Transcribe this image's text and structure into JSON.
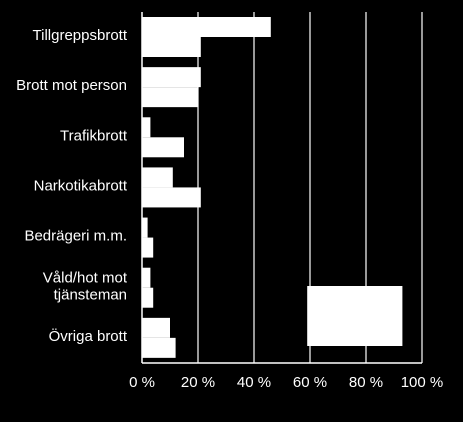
{
  "chart_data": {
    "type": "bar",
    "orientation": "horizontal",
    "categories": [
      [
        "Tillgreppsbrott"
      ],
      [
        "Brott mot person"
      ],
      [
        "Trafikbrott"
      ],
      [
        "Narkotikabrott"
      ],
      [
        "Bedrägeri m.m."
      ],
      [
        "Våld/hot mot",
        "tjänsteman"
      ],
      [
        "Övriga brott"
      ]
    ],
    "series": [
      {
        "values": [
          46,
          21,
          3,
          11,
          2,
          3,
          10
        ]
      },
      {
        "values": [
          21,
          20,
          15,
          21,
          4,
          4,
          12
        ]
      }
    ],
    "xlim": [
      0,
      100
    ],
    "xticks": [
      0,
      20,
      40,
      60,
      80,
      100
    ],
    "xtick_labels": [
      "0 %",
      "20 %",
      "40 %",
      "60 %",
      "80 %",
      "100 %"
    ],
    "grid": "vertical",
    "legend_box": {
      "x": [
        59,
        93
      ],
      "label": ""
    },
    "colors": {
      "background": "#000000",
      "bar": "#ffffff",
      "text": "#ffffff"
    }
  }
}
